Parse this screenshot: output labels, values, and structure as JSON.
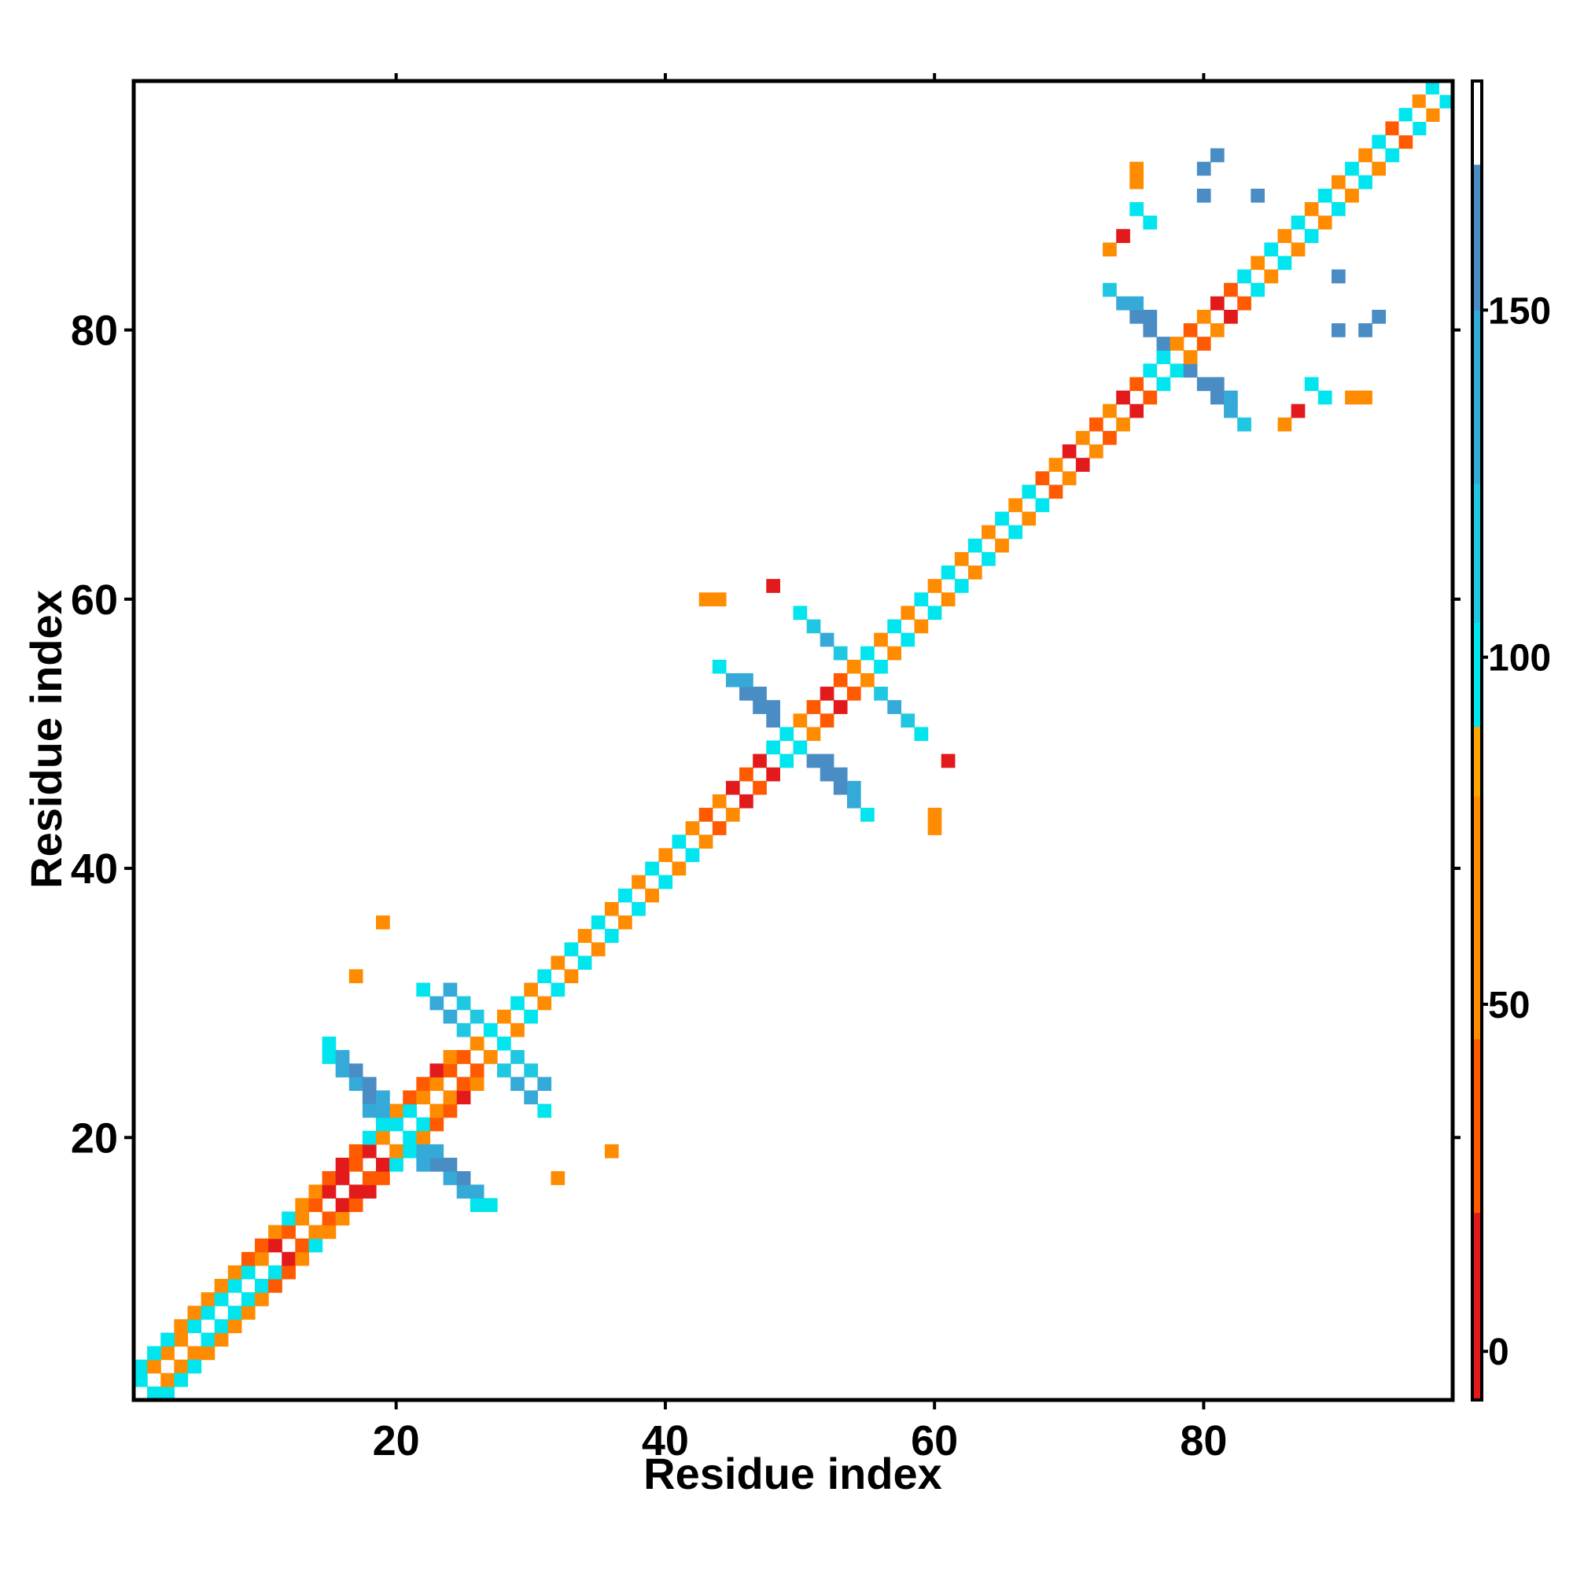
{
  "chart_data": {
    "type": "heatmap",
    "title": "",
    "xlabel": "Residue index",
    "ylabel": "Residue index",
    "xlim": [
      0.5,
      98.5
    ],
    "ylim": [
      0.5,
      98.5
    ],
    "xticks": [
      20,
      40,
      60,
      80
    ],
    "yticks": [
      20,
      40,
      60,
      80
    ],
    "grid": false,
    "colorbar": {
      "ticks": [
        0,
        50,
        100,
        150
      ],
      "range": [
        -7,
        183
      ],
      "bands": [
        {
          "from": -7,
          "to": 20,
          "color": "#e31a1c"
        },
        {
          "from": 20,
          "to": 45,
          "color": "#ff5a00"
        },
        {
          "from": 45,
          "to": 80,
          "color": "#ff8c00"
        },
        {
          "from": 80,
          "to": 90,
          "color": "#ffa500"
        },
        {
          "from": 90,
          "to": 105,
          "color": "#00e5ee"
        },
        {
          "from": 105,
          "to": 125,
          "color": "#1fc8e0"
        },
        {
          "from": 125,
          "to": 150,
          "color": "#35aad8"
        },
        {
          "from": 150,
          "to": 171,
          "color": "#4a8cc4"
        },
        {
          "from": 171,
          "to": 183,
          "color": "#ffffff"
        }
      ]
    },
    "value_scale_note_free": true,
    "cells": [
      [
        1,
        1,
        182
      ],
      [
        2,
        2,
        182
      ],
      [
        3,
        3,
        182
      ],
      [
        2,
        1,
        100
      ],
      [
        1,
        2,
        100
      ],
      [
        3,
        1,
        100
      ],
      [
        1,
        3,
        100
      ],
      [
        3,
        2,
        60
      ],
      [
        2,
        3,
        60
      ],
      [
        4,
        3,
        60
      ],
      [
        3,
        4,
        60
      ],
      [
        5,
        4,
        60
      ],
      [
        4,
        5,
        60
      ],
      [
        4,
        2,
        100
      ],
      [
        2,
        4,
        100
      ],
      [
        5,
        3,
        100
      ],
      [
        3,
        5,
        100
      ],
      [
        6,
        4,
        60
      ],
      [
        4,
        6,
        60
      ],
      [
        6,
        5,
        100
      ],
      [
        5,
        6,
        100
      ],
      [
        7,
        5,
        60
      ],
      [
        5,
        7,
        60
      ],
      [
        7,
        6,
        100
      ],
      [
        6,
        7,
        100
      ],
      [
        8,
        6,
        60
      ],
      [
        6,
        8,
        60
      ],
      [
        8,
        7,
        100
      ],
      [
        7,
        8,
        100
      ],
      [
        9,
        7,
        60
      ],
      [
        7,
        9,
        60
      ],
      [
        9,
        8,
        100
      ],
      [
        8,
        9,
        100
      ],
      [
        10,
        8,
        60
      ],
      [
        8,
        10,
        60
      ],
      [
        10,
        9,
        100
      ],
      [
        9,
        10,
        100
      ],
      [
        11,
        9,
        40
      ],
      [
        9,
        11,
        40
      ],
      [
        11,
        10,
        100
      ],
      [
        10,
        11,
        60
      ],
      [
        12,
        10,
        40
      ],
      [
        10,
        12,
        40
      ],
      [
        12,
        11,
        10
      ],
      [
        11,
        12,
        10
      ],
      [
        13,
        11,
        60
      ],
      [
        11,
        13,
        60
      ],
      [
        13,
        12,
        40
      ],
      [
        12,
        13,
        40
      ],
      [
        14,
        12,
        100
      ],
      [
        12,
        14,
        100
      ],
      [
        14,
        13,
        60
      ],
      [
        13,
        14,
        60
      ],
      [
        15,
        13,
        60
      ],
      [
        13,
        15,
        60
      ],
      [
        15,
        14,
        40
      ],
      [
        14,
        15,
        40
      ],
      [
        16,
        14,
        60
      ],
      [
        14,
        16,
        60
      ],
      [
        16,
        15,
        10
      ],
      [
        15,
        16,
        10
      ],
      [
        17,
        15,
        40
      ],
      [
        15,
        17,
        40
      ],
      [
        17,
        16,
        10
      ],
      [
        16,
        17,
        10
      ],
      [
        18,
        16,
        10
      ],
      [
        16,
        18,
        10
      ],
      [
        18,
        17,
        40
      ],
      [
        17,
        18,
        40
      ],
      [
        19,
        17,
        40
      ],
      [
        17,
        19,
        40
      ],
      [
        19,
        18,
        10
      ],
      [
        18,
        19,
        10
      ],
      [
        20,
        18,
        100
      ],
      [
        18,
        20,
        100
      ],
      [
        20,
        19,
        60
      ],
      [
        19,
        20,
        60
      ],
      [
        21,
        19,
        100
      ],
      [
        19,
        21,
        100
      ],
      [
        21,
        20,
        100
      ],
      [
        20,
        21,
        100
      ],
      [
        22,
        20,
        60
      ],
      [
        20,
        22,
        60
      ],
      [
        22,
        21,
        100
      ],
      [
        21,
        22,
        100
      ],
      [
        23,
        21,
        40
      ],
      [
        21,
        23,
        40
      ],
      [
        23,
        22,
        60
      ],
      [
        22,
        23,
        60
      ],
      [
        24,
        22,
        40
      ],
      [
        22,
        24,
        40
      ],
      [
        24,
        23,
        60
      ],
      [
        23,
        24,
        60
      ],
      [
        25,
        23,
        10
      ],
      [
        23,
        25,
        10
      ],
      [
        25,
        24,
        40
      ],
      [
        24,
        25,
        40
      ],
      [
        26,
        24,
        60
      ],
      [
        24,
        26,
        60
      ],
      [
        26,
        25,
        40
      ],
      [
        25,
        26,
        40
      ],
      [
        22,
        19,
        140
      ],
      [
        19,
        22,
        140
      ],
      [
        23,
        18,
        160
      ],
      [
        18,
        23,
        160
      ],
      [
        24,
        17,
        140
      ],
      [
        17,
        24,
        140
      ],
      [
        25,
        16,
        140
      ],
      [
        16,
        25,
        140
      ],
      [
        26,
        15,
        100
      ],
      [
        15,
        26,
        100
      ],
      [
        22,
        18,
        140
      ],
      [
        18,
        22,
        140
      ],
      [
        23,
        19,
        140
      ],
      [
        19,
        23,
        140
      ],
      [
        24,
        18,
        160
      ],
      [
        18,
        24,
        160
      ],
      [
        25,
        17,
        160
      ],
      [
        17,
        25,
        160
      ],
      [
        26,
        16,
        140
      ],
      [
        16,
        26,
        140
      ],
      [
        27,
        15,
        100
      ],
      [
        15,
        27,
        100
      ],
      [
        27,
        26,
        60
      ],
      [
        26,
        27,
        60
      ],
      [
        28,
        27,
        100
      ],
      [
        27,
        28,
        100
      ],
      [
        29,
        28,
        60
      ],
      [
        28,
        29,
        60
      ],
      [
        30,
        29,
        100
      ],
      [
        29,
        30,
        100
      ],
      [
        31,
        30,
        60
      ],
      [
        30,
        31,
        60
      ],
      [
        32,
        31,
        100
      ],
      [
        31,
        32,
        100
      ],
      [
        33,
        32,
        60
      ],
      [
        32,
        33,
        60
      ],
      [
        34,
        33,
        100
      ],
      [
        33,
        34,
        100
      ],
      [
        35,
        34,
        60
      ],
      [
        34,
        35,
        60
      ],
      [
        36,
        35,
        100
      ],
      [
        35,
        36,
        100
      ],
      [
        37,
        36,
        60
      ],
      [
        36,
        37,
        60
      ],
      [
        38,
        37,
        100
      ],
      [
        37,
        38,
        100
      ],
      [
        39,
        38,
        60
      ],
      [
        38,
        39,
        60
      ],
      [
        40,
        39,
        100
      ],
      [
        39,
        40,
        100
      ],
      [
        41,
        40,
        60
      ],
      [
        40,
        41,
        60
      ],
      [
        42,
        41,
        100
      ],
      [
        41,
        42,
        100
      ],
      [
        43,
        42,
        60
      ],
      [
        42,
        43,
        60
      ],
      [
        44,
        43,
        40
      ],
      [
        43,
        44,
        40
      ],
      [
        45,
        44,
        60
      ],
      [
        44,
        45,
        60
      ],
      [
        46,
        45,
        10
      ],
      [
        45,
        46,
        10
      ],
      [
        47,
        46,
        40
      ],
      [
        46,
        47,
        40
      ],
      [
        48,
        47,
        10
      ],
      [
        47,
        48,
        10
      ],
      [
        49,
        48,
        100
      ],
      [
        48,
        49,
        100
      ],
      [
        50,
        49,
        100
      ],
      [
        49,
        50,
        100
      ],
      [
        28,
        25,
        120
      ],
      [
        25,
        28,
        120
      ],
      [
        29,
        24,
        140
      ],
      [
        24,
        29,
        140
      ],
      [
        30,
        23,
        140
      ],
      [
        23,
        30,
        140
      ],
      [
        31,
        22,
        100
      ],
      [
        22,
        31,
        100
      ],
      [
        29,
        26,
        120
      ],
      [
        26,
        29,
        120
      ],
      [
        30,
        25,
        120
      ],
      [
        25,
        30,
        120
      ],
      [
        31,
        24,
        140
      ],
      [
        24,
        31,
        140
      ],
      [
        36,
        19,
        75
      ],
      [
        19,
        36,
        75
      ],
      [
        32,
        17,
        75
      ],
      [
        17,
        32,
        75
      ],
      [
        51,
        48,
        160
      ],
      [
        48,
        51,
        160
      ],
      [
        52,
        47,
        160
      ],
      [
        47,
        52,
        160
      ],
      [
        53,
        46,
        160
      ],
      [
        46,
        53,
        160
      ],
      [
        54,
        45,
        140
      ],
      [
        45,
        54,
        140
      ],
      [
        55,
        44,
        100
      ],
      [
        44,
        55,
        100
      ],
      [
        52,
        48,
        160
      ],
      [
        48,
        52,
        160
      ],
      [
        53,
        47,
        160
      ],
      [
        47,
        53,
        160
      ],
      [
        54,
        46,
        140
      ],
      [
        46,
        54,
        140
      ],
      [
        51,
        50,
        60
      ],
      [
        50,
        51,
        60
      ],
      [
        52,
        51,
        40
      ],
      [
        51,
        52,
        40
      ],
      [
        53,
        52,
        10
      ],
      [
        52,
        53,
        10
      ],
      [
        54,
        53,
        40
      ],
      [
        53,
        54,
        40
      ],
      [
        55,
        54,
        60
      ],
      [
        54,
        55,
        60
      ],
      [
        56,
        55,
        100
      ],
      [
        55,
        56,
        100
      ],
      [
        57,
        56,
        60
      ],
      [
        56,
        57,
        60
      ],
      [
        58,
        57,
        100
      ],
      [
        57,
        58,
        100
      ],
      [
        59,
        58,
        60
      ],
      [
        58,
        59,
        60
      ],
      [
        60,
        59,
        100
      ],
      [
        59,
        60,
        100
      ],
      [
        61,
        60,
        60
      ],
      [
        60,
        61,
        60
      ],
      [
        62,
        61,
        100
      ],
      [
        61,
        62,
        100
      ],
      [
        63,
        62,
        60
      ],
      [
        62,
        63,
        60
      ],
      [
        64,
        63,
        100
      ],
      [
        63,
        64,
        100
      ],
      [
        65,
        64,
        60
      ],
      [
        64,
        65,
        60
      ],
      [
        66,
        65,
        100
      ],
      [
        65,
        66,
        100
      ],
      [
        67,
        66,
        60
      ],
      [
        66,
        67,
        60
      ],
      [
        68,
        67,
        100
      ],
      [
        67,
        68,
        100
      ],
      [
        69,
        68,
        40
      ],
      [
        68,
        69,
        40
      ],
      [
        70,
        69,
        60
      ],
      [
        69,
        70,
        60
      ],
      [
        71,
        70,
        10
      ],
      [
        70,
        71,
        10
      ],
      [
        72,
        71,
        60
      ],
      [
        71,
        72,
        60
      ],
      [
        73,
        72,
        40
      ],
      [
        72,
        73,
        40
      ],
      [
        74,
        73,
        60
      ],
      [
        73,
        74,
        60
      ],
      [
        75,
        74,
        10
      ],
      [
        74,
        75,
        10
      ],
      [
        76,
        75,
        40
      ],
      [
        75,
        76,
        40
      ],
      [
        77,
        76,
        100
      ],
      [
        76,
        77,
        100
      ],
      [
        78,
        77,
        100
      ],
      [
        77,
        78,
        100
      ],
      [
        56,
        53,
        120
      ],
      [
        53,
        56,
        120
      ],
      [
        57,
        52,
        140
      ],
      [
        52,
        57,
        140
      ],
      [
        58,
        51,
        120
      ],
      [
        51,
        58,
        120
      ],
      [
        59,
        50,
        100
      ],
      [
        50,
        59,
        100
      ],
      [
        60,
        44,
        60
      ],
      [
        44,
        60,
        60
      ],
      [
        61,
        48,
        10
      ],
      [
        48,
        61,
        10
      ],
      [
        60,
        43,
        75
      ],
      [
        43,
        60,
        75
      ],
      [
        80,
        76,
        160
      ],
      [
        76,
        80,
        160
      ],
      [
        81,
        75,
        160
      ],
      [
        75,
        81,
        160
      ],
      [
        82,
        74,
        140
      ],
      [
        74,
        82,
        140
      ],
      [
        83,
        73,
        120
      ],
      [
        73,
        83,
        120
      ],
      [
        81,
        76,
        160
      ],
      [
        76,
        81,
        160
      ],
      [
        82,
        75,
        140
      ],
      [
        75,
        82,
        140
      ],
      [
        79,
        77,
        160
      ],
      [
        77,
        79,
        160
      ],
      [
        79,
        78,
        60
      ],
      [
        78,
        79,
        60
      ],
      [
        80,
        79,
        40
      ],
      [
        79,
        80,
        40
      ],
      [
        81,
        80,
        60
      ],
      [
        80,
        81,
        60
      ],
      [
        82,
        81,
        10
      ],
      [
        81,
        82,
        10
      ],
      [
        83,
        82,
        40
      ],
      [
        82,
        83,
        40
      ],
      [
        84,
        83,
        100
      ],
      [
        83,
        84,
        100
      ],
      [
        85,
        84,
        60
      ],
      [
        84,
        85,
        60
      ],
      [
        86,
        85,
        100
      ],
      [
        85,
        86,
        100
      ],
      [
        87,
        86,
        60
      ],
      [
        86,
        87,
        60
      ],
      [
        88,
        87,
        100
      ],
      [
        87,
        88,
        100
      ],
      [
        89,
        88,
        60
      ],
      [
        88,
        89,
        60
      ],
      [
        90,
        89,
        100
      ],
      [
        89,
        90,
        100
      ],
      [
        91,
        90,
        60
      ],
      [
        90,
        91,
        60
      ],
      [
        92,
        91,
        100
      ],
      [
        91,
        92,
        100
      ],
      [
        93,
        92,
        60
      ],
      [
        92,
        93,
        60
      ],
      [
        94,
        93,
        100
      ],
      [
        93,
        94,
        100
      ],
      [
        95,
        94,
        40
      ],
      [
        94,
        95,
        40
      ],
      [
        96,
        95,
        100
      ],
      [
        95,
        96,
        100
      ],
      [
        97,
        96,
        60
      ],
      [
        96,
        97,
        60
      ],
      [
        98,
        97,
        100
      ],
      [
        97,
        98,
        100
      ],
      [
        98,
        98,
        182
      ],
      [
        97,
        97,
        182
      ],
      [
        96,
        96,
        182
      ],
      [
        95,
        95,
        182
      ],
      [
        86,
        73,
        75
      ],
      [
        73,
        86,
        75
      ],
      [
        88,
        76,
        100
      ],
      [
        76,
        88,
        100
      ],
      [
        92,
        75,
        60
      ],
      [
        75,
        92,
        60
      ],
      [
        92,
        80,
        150
      ],
      [
        80,
        92,
        150
      ],
      [
        93,
        81,
        150
      ],
      [
        81,
        93,
        150
      ],
      [
        74,
        87,
        10
      ],
      [
        87,
        74,
        10
      ],
      [
        75,
        89,
        100
      ],
      [
        89,
        75,
        100
      ],
      [
        75,
        91,
        60
      ],
      [
        91,
        75,
        60
      ],
      [
        84,
        90,
        150
      ],
      [
        90,
        84,
        150
      ],
      [
        80,
        90,
        150
      ],
      [
        90,
        80,
        150
      ]
    ]
  }
}
